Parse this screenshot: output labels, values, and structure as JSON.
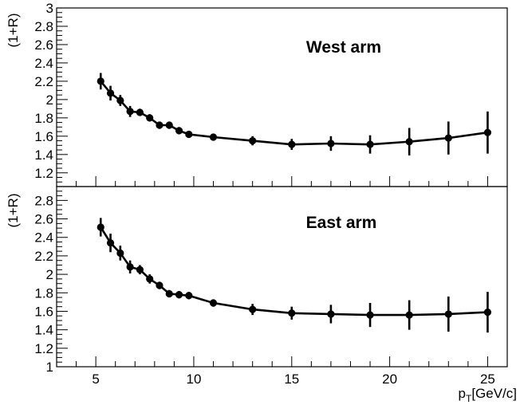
{
  "chart_data": [
    {
      "type": "line",
      "panel": "top",
      "annotation": "West arm",
      "ylabel": "(1+R)",
      "xlabel": "",
      "xlim": [
        3,
        26
      ],
      "ylim": [
        1.05,
        3.0
      ],
      "yticks": [
        1.2,
        1.4,
        1.6,
        1.8,
        2,
        2.2,
        2.4,
        2.6,
        2.8,
        3
      ],
      "ytick_labels": [
        "1.2",
        "1.4",
        "1.6",
        "1.8",
        "2",
        "2.2",
        "2.4",
        "2.6",
        "2.8",
        "3"
      ],
      "x": [
        5.25,
        5.75,
        6.25,
        6.75,
        7.25,
        7.75,
        8.25,
        8.75,
        9.25,
        9.75,
        11,
        13,
        15,
        17,
        19,
        21,
        23,
        25
      ],
      "y": [
        2.2,
        2.07,
        1.99,
        1.87,
        1.86,
        1.8,
        1.72,
        1.72,
        1.66,
        1.62,
        1.59,
        1.55,
        1.51,
        1.52,
        1.51,
        1.54,
        1.58,
        1.64
      ],
      "yerr": [
        0.09,
        0.08,
        0.06,
        0.06,
        0.04,
        0.04,
        0.04,
        0.04,
        0.04,
        0.03,
        0.03,
        0.05,
        0.06,
        0.08,
        0.1,
        0.15,
        0.18,
        0.23
      ],
      "grid": false,
      "legend": "none"
    },
    {
      "type": "line",
      "panel": "bottom",
      "annotation": "East arm",
      "ylabel": "(1+R)",
      "xlabel": "p_T[GeV/c]",
      "xlabel_main": "p",
      "xlabel_sub": "T",
      "xlabel_rest": "[GeV/c]",
      "xlim": [
        3,
        26
      ],
      "ylim": [
        1.0,
        2.95
      ],
      "xticks": [
        5,
        10,
        15,
        20,
        25
      ],
      "xtick_labels": [
        "5",
        "10",
        "15",
        "20",
        "25"
      ],
      "yticks": [
        1,
        1.2,
        1.4,
        1.6,
        1.8,
        2,
        2.2,
        2.4,
        2.6,
        2.8
      ],
      "ytick_labels": [
        "1",
        "1.2",
        "1.4",
        "1.6",
        "1.8",
        "2",
        "2.2",
        "2.4",
        "2.6",
        "2.8"
      ],
      "x": [
        5.25,
        5.75,
        6.25,
        6.75,
        7.25,
        7.75,
        8.25,
        8.75,
        9.25,
        9.75,
        11,
        13,
        15,
        17,
        19,
        21,
        23,
        25
      ],
      "y": [
        2.51,
        2.34,
        2.23,
        2.08,
        2.05,
        1.95,
        1.88,
        1.79,
        1.78,
        1.77,
        1.69,
        1.62,
        1.58,
        1.57,
        1.56,
        1.56,
        1.57,
        1.59
      ],
      "yerr": [
        0.1,
        0.1,
        0.08,
        0.07,
        0.05,
        0.05,
        0.04,
        0.04,
        0.04,
        0.04,
        0.04,
        0.06,
        0.07,
        0.1,
        0.13,
        0.16,
        0.19,
        0.22
      ],
      "grid": false,
      "legend": "none"
    }
  ]
}
